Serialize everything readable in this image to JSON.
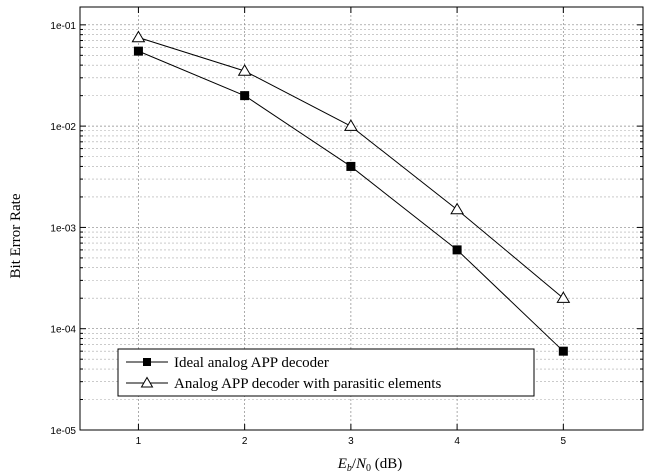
{
  "chart_data": {
    "type": "line",
    "xlabel_main": "E",
    "xlabel_sub1": "b",
    "xlabel_sep": "/",
    "xlabel_main2": "N",
    "xlabel_sub2": "0",
    "xlabel_unit": " (dB)",
    "ylabel": "Bit Error Rate",
    "x": [
      1,
      2,
      3,
      4,
      5
    ],
    "x_ticks": [
      "1",
      "2",
      "3",
      "4",
      "5"
    ],
    "xlim": [
      0.45,
      5.75
    ],
    "y_scale": "log",
    "ylim": [
      1e-05,
      0.15
    ],
    "y_ticks": [
      {
        "value": 0.1,
        "label": "1e-01"
      },
      {
        "value": 0.01,
        "label": "1e-02"
      },
      {
        "value": 0.001,
        "label": "1e-03"
      },
      {
        "value": 0.0001,
        "label": "1e-04"
      },
      {
        "value": 1e-05,
        "label": "1e-05"
      }
    ],
    "grid": true,
    "legend_position": "bottom-left",
    "series": [
      {
        "name": "Ideal analog APP decoder",
        "marker": "filled-square",
        "color": "#000000",
        "values": [
          0.055,
          0.02,
          0.004,
          0.0006,
          6e-05
        ]
      },
      {
        "name": "Analog APP decoder with parasitic elements",
        "marker": "open-triangle",
        "color": "#000000",
        "values": [
          0.075,
          0.035,
          0.01,
          0.0015,
          0.0002
        ]
      }
    ]
  }
}
